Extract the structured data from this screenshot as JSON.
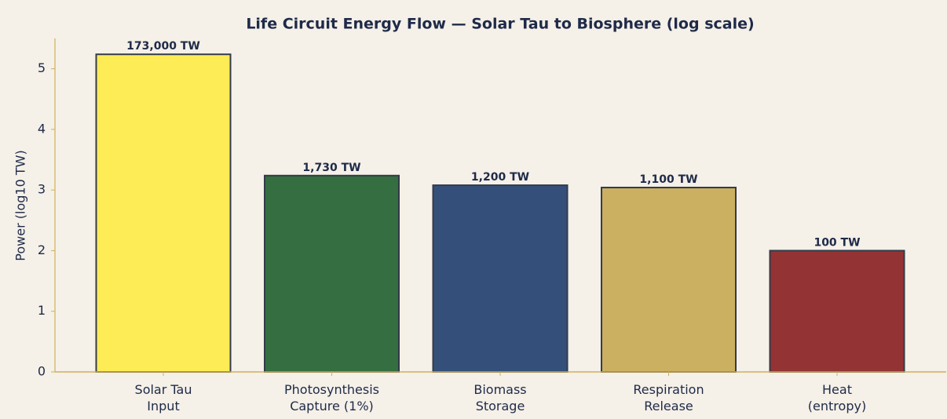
{
  "chart_data": {
    "type": "bar",
    "title": "Life Circuit Energy Flow — Solar Tau to Biosphere (log scale)",
    "y_label": "Power (log10 TW)",
    "categories": [
      "Solar Tau\nInput",
      "Photosynthesis\nCapture (1%)",
      "Biomass\nStorage",
      "Respiration\nRelease",
      "Heat\n(entropy)"
    ],
    "values": [
      5.238,
      3.238,
      3.079,
      3.041,
      2
    ],
    "value_labels": [
      "173,000 TW",
      "1,730 TW",
      "1,200 TW",
      "1,100 TW",
      "100 TW"
    ],
    "colors": [
      "#fdec56",
      "#356e40",
      "#34507a",
      "#cbb061",
      "#943333"
    ],
    "ylim": [
      0,
      5.5
    ],
    "yticks": [
      0,
      1,
      2,
      3,
      4,
      5
    ],
    "grid": false
  }
}
